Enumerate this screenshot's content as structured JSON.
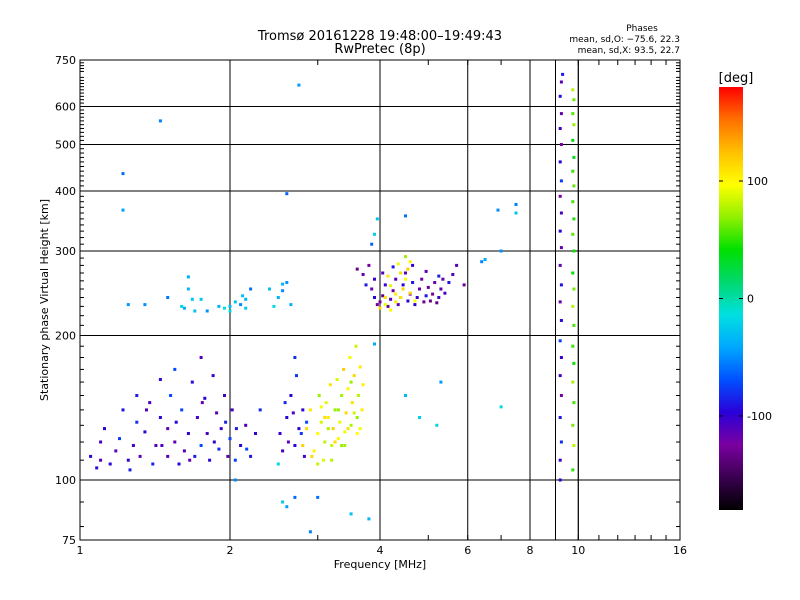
{
  "chart_data": {
    "type": "scatter",
    "title": "Tromsø 20161228 19:48:00–19:49:43",
    "subtitle": "RwPretec (8p)",
    "xlabel": "Frequency [MHz]",
    "ylabel": "Stationary phase Virtual Height [km]",
    "x_scale": "log",
    "y_scale": "log",
    "xlim": [
      1,
      16
    ],
    "ylim": [
      75,
      750
    ],
    "x_ticks": [
      1,
      2,
      4,
      6,
      8,
      10,
      16
    ],
    "y_ticks": [
      75,
      100,
      200,
      300,
      400,
      500,
      600,
      750
    ],
    "x_extra_gridlines": [
      9,
      10
    ],
    "grid": true,
    "stats": {
      "heading": "Phases",
      "line1": "mean, sd,O: −75.6, 22.3",
      "line2": "mean, sd,X:  93.5, 22.7"
    },
    "colorbar": {
      "label": "[deg]",
      "range": [
        -180,
        180
      ],
      "ticks": [
        100,
        0,
        -100
      ],
      "colors": [
        "#000000",
        "#3a0050",
        "#7a00a0",
        "#2a00d8",
        "#0050ff",
        "#00a8ff",
        "#00e0e0",
        "#00d870",
        "#00e000",
        "#90f000",
        "#ffff00",
        "#ffc000",
        "#ff7000",
        "#ff0000"
      ]
    },
    "series": [
      {
        "region": "E/F1 layer O-mode",
        "values": [
          [
            1.05,
            112
          ],
          [
            1.08,
            106
          ],
          [
            1.1,
            110
          ],
          [
            1.1,
            120
          ],
          [
            1.12,
            128
          ],
          [
            1.15,
            108
          ],
          [
            1.18,
            115
          ],
          [
            1.2,
            122
          ],
          [
            1.22,
            140
          ],
          [
            1.25,
            110
          ],
          [
            1.28,
            118
          ],
          [
            1.3,
            132
          ],
          [
            1.3,
            150
          ],
          [
            1.32,
            112
          ],
          [
            1.35,
            126
          ],
          [
            1.38,
            145
          ],
          [
            1.4,
            108
          ],
          [
            1.42,
            118
          ],
          [
            1.45,
            162
          ],
          [
            1.45,
            135
          ],
          [
            1.5,
            112
          ],
          [
            1.5,
            128
          ],
          [
            1.52,
            150
          ],
          [
            1.55,
            170
          ],
          [
            1.55,
            120
          ],
          [
            1.58,
            108
          ],
          [
            1.6,
            140
          ],
          [
            1.62,
            115
          ],
          [
            1.65,
            125
          ],
          [
            1.68,
            160
          ],
          [
            1.7,
            112
          ],
          [
            1.72,
            135
          ],
          [
            1.75,
            180
          ],
          [
            1.75,
            118
          ],
          [
            1.78,
            148
          ],
          [
            1.8,
            125
          ],
          [
            1.82,
            110
          ],
          [
            1.85,
            165
          ],
          [
            1.88,
            138
          ],
          [
            1.9,
            116
          ],
          [
            1.92,
            128
          ],
          [
            1.95,
            150
          ],
          [
            1.98,
            112
          ],
          [
            2.0,
            122
          ],
          [
            2.02,
            140
          ],
          [
            2.05,
            110
          ],
          [
            2.1,
            118
          ],
          [
            2.15,
            130
          ],
          [
            2.2,
            112
          ],
          [
            2.25,
            125
          ],
          [
            2.3,
            140
          ],
          [
            1.26,
            105
          ],
          [
            1.36,
            140
          ],
          [
            1.46,
            118
          ],
          [
            1.56,
            132
          ],
          [
            1.66,
            110
          ],
          [
            1.76,
            145
          ],
          [
            1.86,
            120
          ],
          [
            1.96,
            132
          ],
          [
            2.06,
            128
          ],
          [
            2.16,
            116
          ],
          [
            2.52,
            125
          ],
          [
            2.6,
            135
          ],
          [
            2.65,
            150
          ],
          [
            2.7,
            118
          ],
          [
            2.72,
            165
          ],
          [
            2.75,
            128
          ],
          [
            2.8,
            140
          ],
          [
            2.82,
            112
          ],
          [
            2.55,
            115
          ],
          [
            2.58,
            145
          ],
          [
            2.62,
            120
          ],
          [
            2.68,
            138
          ],
          [
            2.7,
            180
          ],
          [
            2.78,
            125
          ],
          [
            2.85,
            132
          ]
        ],
        "phase": -95
      },
      {
        "region": "F layer X-mode",
        "values": [
          [
            2.8,
            118
          ],
          [
            2.85,
            128
          ],
          [
            2.9,
            140
          ],
          [
            2.95,
            115
          ],
          [
            3.0,
            125
          ],
          [
            3.02,
            150
          ],
          [
            3.05,
            132
          ],
          [
            3.08,
            110
          ],
          [
            3.1,
            120
          ],
          [
            3.12,
            145
          ],
          [
            3.15,
            135
          ],
          [
            3.18,
            158
          ],
          [
            3.2,
            118
          ],
          [
            3.22,
            128
          ],
          [
            3.25,
            140
          ],
          [
            3.28,
            162
          ],
          [
            3.3,
            122
          ],
          [
            3.32,
            132
          ],
          [
            3.35,
            150
          ],
          [
            3.38,
            170
          ],
          [
            3.4,
            126
          ],
          [
            3.42,
            138
          ],
          [
            3.45,
            155
          ],
          [
            3.48,
            180
          ],
          [
            3.5,
            130
          ],
          [
            3.52,
            145
          ],
          [
            3.55,
            165
          ],
          [
            3.58,
            190
          ],
          [
            3.6,
            135
          ],
          [
            3.62,
            150
          ],
          [
            3.65,
            172
          ],
          [
            3.68,
            140
          ],
          [
            3.7,
            158
          ],
          [
            2.92,
            112
          ],
          [
            3.0,
            108
          ],
          [
            3.1,
            135
          ],
          [
            3.2,
            110
          ],
          [
            3.3,
            140
          ],
          [
            3.4,
            118
          ],
          [
            3.5,
            160
          ],
          [
            3.6,
            125
          ],
          [
            3.45,
            128
          ],
          [
            3.25,
            120
          ],
          [
            3.15,
            128
          ],
          [
            3.05,
            142
          ],
          [
            3.35,
            118
          ],
          [
            3.55,
            138
          ],
          [
            3.65,
            128
          ]
        ],
        "phase": 95
      },
      {
        "region": "F2 spread O-mode",
        "values": [
          [
            3.6,
            275
          ],
          [
            3.7,
            268
          ],
          [
            3.8,
            280
          ],
          [
            3.85,
            250
          ],
          [
            3.9,
            240
          ],
          [
            3.95,
            232
          ],
          [
            4.0,
            235
          ],
          [
            4.05,
            242
          ],
          [
            4.1,
            255
          ],
          [
            4.15,
            230
          ],
          [
            4.2,
            238
          ],
          [
            4.25,
            248
          ],
          [
            4.3,
            262
          ],
          [
            4.35,
            232
          ],
          [
            4.4,
            240
          ],
          [
            4.45,
            255
          ],
          [
            4.5,
            270
          ],
          [
            4.55,
            236
          ],
          [
            4.6,
            244
          ],
          [
            4.65,
            258
          ],
          [
            4.7,
            232
          ],
          [
            4.75,
            240
          ],
          [
            4.8,
            250
          ],
          [
            4.85,
            262
          ],
          [
            4.9,
            235
          ],
          [
            4.95,
            242
          ],
          [
            5.0,
            252
          ],
          [
            5.05,
            236
          ],
          [
            5.1,
            244
          ],
          [
            5.15,
            258
          ],
          [
            5.2,
            234
          ],
          [
            5.25,
            240
          ],
          [
            5.3,
            250
          ],
          [
            5.35,
            262
          ],
          [
            5.4,
            245
          ],
          [
            5.5,
            258
          ],
          [
            5.6,
            268
          ],
          [
            5.7,
            280
          ],
          [
            5.9,
            255
          ],
          [
            3.75,
            255
          ],
          [
            3.9,
            262
          ],
          [
            4.05,
            270
          ],
          [
            4.25,
            278
          ],
          [
            4.65,
            280
          ],
          [
            4.95,
            272
          ],
          [
            5.25,
            266
          ]
        ],
        "phase": -110
      },
      {
        "region": "F2 X-mode",
        "values": [
          [
            4.0,
            228
          ],
          [
            4.1,
            232
          ],
          [
            4.2,
            226
          ],
          [
            4.3,
            235
          ],
          [
            4.4,
            240
          ],
          [
            4.45,
            250
          ],
          [
            4.5,
            262
          ],
          [
            4.55,
            275
          ],
          [
            4.6,
            285
          ],
          [
            4.4,
            270
          ],
          [
            4.35,
            282
          ],
          [
            4.5,
            292
          ],
          [
            4.6,
            245
          ],
          [
            4.7,
            236
          ],
          [
            4.3,
            244
          ],
          [
            4.2,
            254
          ],
          [
            4.15,
            266
          ],
          [
            4.1,
            240
          ]
        ],
        "phase": 95
      },
      {
        "region": "9.5 MHz vertical trace O",
        "values": [
          [
            9.2,
            100
          ],
          [
            9.2,
            110
          ],
          [
            9.25,
            120
          ],
          [
            9.2,
            135
          ],
          [
            9.25,
            150
          ],
          [
            9.2,
            165
          ],
          [
            9.25,
            180
          ],
          [
            9.2,
            195
          ],
          [
            9.25,
            215
          ],
          [
            9.2,
            235
          ],
          [
            9.25,
            255
          ],
          [
            9.2,
            280
          ],
          [
            9.25,
            305
          ],
          [
            9.2,
            330
          ],
          [
            9.25,
            360
          ],
          [
            9.2,
            390
          ],
          [
            9.25,
            420
          ],
          [
            9.2,
            460
          ],
          [
            9.25,
            500
          ],
          [
            9.2,
            540
          ],
          [
            9.25,
            580
          ],
          [
            9.2,
            630
          ],
          [
            9.25,
            675
          ],
          [
            9.3,
            700
          ]
        ],
        "phase": -100
      },
      {
        "region": "9.8 MHz vertical trace X",
        "values": [
          [
            9.75,
            105
          ],
          [
            9.8,
            118
          ],
          [
            9.75,
            130
          ],
          [
            9.8,
            145
          ],
          [
            9.75,
            160
          ],
          [
            9.8,
            175
          ],
          [
            9.75,
            190
          ],
          [
            9.8,
            210
          ],
          [
            9.75,
            230
          ],
          [
            9.8,
            250
          ],
          [
            9.75,
            270
          ],
          [
            9.8,
            300
          ],
          [
            9.75,
            325
          ],
          [
            9.8,
            350
          ],
          [
            9.75,
            380
          ],
          [
            9.8,
            410
          ],
          [
            9.75,
            440
          ],
          [
            9.8,
            470
          ],
          [
            9.75,
            510
          ],
          [
            9.8,
            550
          ],
          [
            9.75,
            580
          ],
          [
            9.8,
            620
          ],
          [
            9.75,
            650
          ]
        ],
        "phase": 60
      },
      {
        "region": "scattered echoes",
        "values": [
          [
            1.22,
            435
          ],
          [
            1.22,
            365
          ],
          [
            1.45,
            560
          ],
          [
            2.75,
            665
          ],
          [
            2.6,
            395
          ],
          [
            4.5,
            355
          ],
          [
            3.95,
            350
          ],
          [
            3.9,
            325
          ],
          [
            3.85,
            310
          ],
          [
            3.9,
            192
          ],
          [
            6.9,
            365
          ],
          [
            7.0,
            300
          ],
          [
            7.5,
            375
          ],
          [
            7.5,
            360
          ],
          [
            6.5,
            288
          ],
          [
            6.4,
            285
          ],
          [
            4.5,
            150
          ],
          [
            4.8,
            135
          ],
          [
            5.2,
            130
          ],
          [
            5.3,
            160
          ],
          [
            7.0,
            142
          ],
          [
            2.55,
            90
          ],
          [
            2.6,
            88
          ],
          [
            2.7,
            92
          ],
          [
            2.9,
            78
          ],
          [
            3.0,
            92
          ],
          [
            3.5,
            85
          ],
          [
            3.8,
            83
          ],
          [
            2.5,
            108
          ],
          [
            2.05,
            100
          ],
          [
            1.25,
            232
          ],
          [
            1.35,
            232
          ],
          [
            1.5,
            240
          ],
          [
            1.6,
            230
          ],
          [
            1.65,
            250
          ],
          [
            1.75,
            238
          ],
          [
            2.0,
            230
          ],
          [
            2.1,
            232
          ],
          [
            2.15,
            238
          ],
          [
            2.2,
            250
          ],
          [
            2.4,
            250
          ],
          [
            2.45,
            230
          ],
          [
            2.55,
            256
          ]
        ],
        "phase": -40
      },
      {
        "region": "F1 low-frequency cluster",
        "values": [
          [
            1.62,
            228
          ],
          [
            1.65,
            265
          ],
          [
            1.68,
            238
          ],
          [
            1.7,
            225
          ],
          [
            1.8,
            225
          ],
          [
            1.9,
            230
          ],
          [
            1.95,
            228
          ],
          [
            2.0,
            225
          ],
          [
            2.05,
            235
          ],
          [
            2.12,
            242
          ],
          [
            2.15,
            228
          ],
          [
            2.5,
            240
          ],
          [
            2.55,
            248
          ],
          [
            2.6,
            258
          ],
          [
            2.65,
            232
          ]
        ],
        "phase": -30
      }
    ]
  }
}
